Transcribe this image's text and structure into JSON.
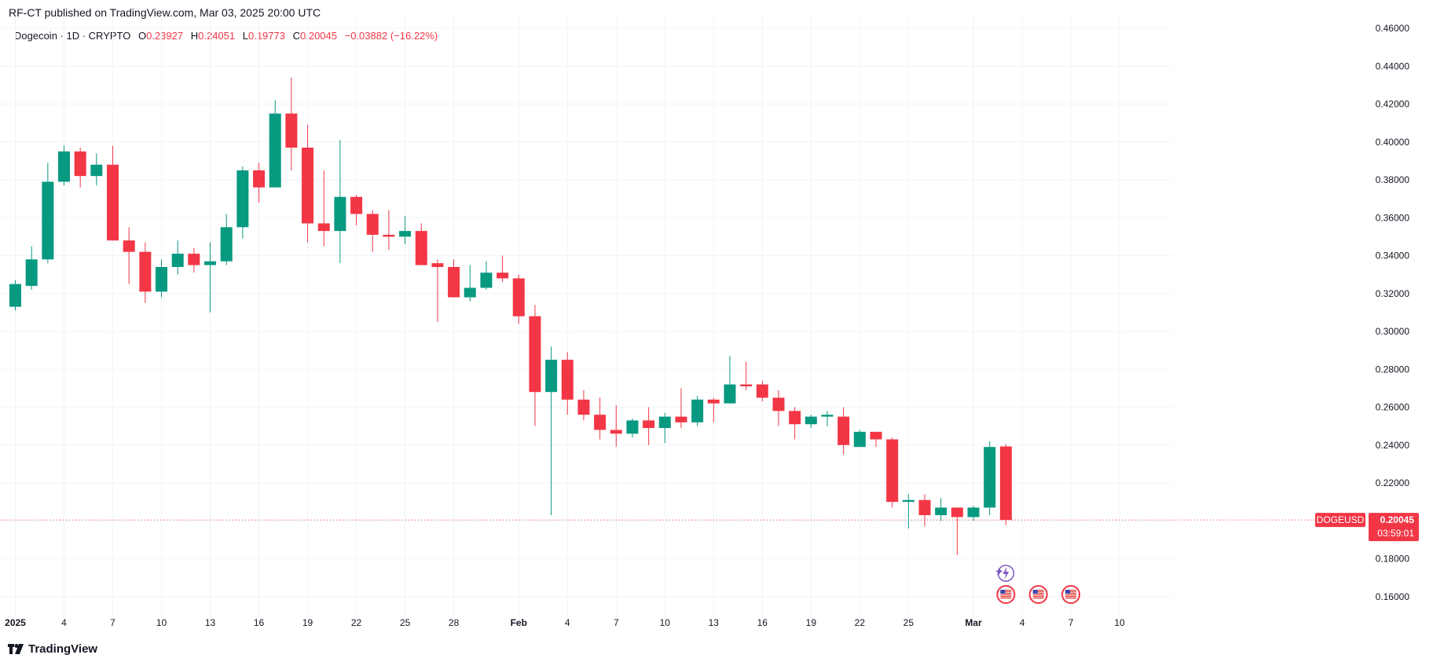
{
  "publish_info": "RF-CT published on TradingView.com, Mar 03, 2025 20:00 UTC",
  "legend": {
    "symbol": "Dogecoin · 1D · CRYPTO",
    "open_label": "O",
    "open_value": "0.23927",
    "high_label": "H",
    "high_value": "0.24051",
    "low_label": "L",
    "low_value": "0.19773",
    "close_label": "C",
    "close_value": "0.20045",
    "change": "−0.03882 (−16.22%)"
  },
  "price_tag": {
    "symbol_label": "DOGEUSD",
    "price": "0.20045",
    "countdown": "03:59:01"
  },
  "footer": {
    "brand": "TradingView"
  },
  "colors": {
    "up": "#089981",
    "down": "#f23645",
    "grid": "#f0f3fa",
    "axis_text": "#131722"
  },
  "events": {
    "spark_icon": "lightning-event-icon",
    "flag_icon": "us-flag-event-icon",
    "spark_day": "Mar 03",
    "flag_days": [
      "Mar 03",
      "Mar 05",
      "Mar 07"
    ]
  },
  "chart_data": {
    "type": "candlestick",
    "title": "Dogecoin · 1D · CRYPTO",
    "xlabel": "",
    "ylabel": "",
    "ylim": [
      0.15,
      0.465
    ],
    "y_ticks": [
      "0.46000",
      "0.44000",
      "0.42000",
      "0.40000",
      "0.38000",
      "0.36000",
      "0.34000",
      "0.32000",
      "0.30000",
      "0.28000",
      "0.26000",
      "0.24000",
      "0.22000",
      "0.20000",
      "0.18000",
      "0.16000"
    ],
    "x_ticks": [
      {
        "label": "2025",
        "index": 0
      },
      {
        "label": "4",
        "index": 3
      },
      {
        "label": "7",
        "index": 6
      },
      {
        "label": "10",
        "index": 9
      },
      {
        "label": "13",
        "index": 12
      },
      {
        "label": "16",
        "index": 15
      },
      {
        "label": "19",
        "index": 18
      },
      {
        "label": "22",
        "index": 21
      },
      {
        "label": "25",
        "index": 24
      },
      {
        "label": "28",
        "index": 27
      },
      {
        "label": "Feb",
        "index": 31
      },
      {
        "label": "4",
        "index": 34
      },
      {
        "label": "7",
        "index": 37
      },
      {
        "label": "10",
        "index": 40
      },
      {
        "label": "13",
        "index": 43
      },
      {
        "label": "16",
        "index": 46
      },
      {
        "label": "19",
        "index": 49
      },
      {
        "label": "22",
        "index": 52
      },
      {
        "label": "25",
        "index": 55
      },
      {
        "label": "Mar",
        "index": 59
      },
      {
        "label": "4",
        "index": 62
      },
      {
        "label": "7",
        "index": 65
      },
      {
        "label": "10",
        "index": 68
      }
    ],
    "grid": true,
    "last_price": 0.20045,
    "candles": [
      {
        "date": "2025-01-01",
        "open": 0.313,
        "high": 0.327,
        "low": 0.311,
        "close": 0.325
      },
      {
        "date": "2025-01-02",
        "open": 0.324,
        "high": 0.345,
        "low": 0.322,
        "close": 0.338
      },
      {
        "date": "2025-01-03",
        "open": 0.338,
        "high": 0.389,
        "low": 0.336,
        "close": 0.379
      },
      {
        "date": "2025-01-04",
        "open": 0.379,
        "high": 0.398,
        "low": 0.377,
        "close": 0.395
      },
      {
        "date": "2025-01-05",
        "open": 0.395,
        "high": 0.397,
        "low": 0.376,
        "close": 0.382
      },
      {
        "date": "2025-01-06",
        "open": 0.382,
        "high": 0.394,
        "low": 0.377,
        "close": 0.388
      },
      {
        "date": "2025-01-07",
        "open": 0.388,
        "high": 0.398,
        "low": 0.348,
        "close": 0.348
      },
      {
        "date": "2025-01-08",
        "open": 0.348,
        "high": 0.355,
        "low": 0.325,
        "close": 0.342
      },
      {
        "date": "2025-01-09",
        "open": 0.342,
        "high": 0.347,
        "low": 0.315,
        "close": 0.321
      },
      {
        "date": "2025-01-10",
        "open": 0.321,
        "high": 0.338,
        "low": 0.318,
        "close": 0.334
      },
      {
        "date": "2025-01-11",
        "open": 0.334,
        "high": 0.348,
        "low": 0.33,
        "close": 0.341
      },
      {
        "date": "2025-01-12",
        "open": 0.341,
        "high": 0.344,
        "low": 0.331,
        "close": 0.335
      },
      {
        "date": "2025-01-13",
        "open": 0.335,
        "high": 0.347,
        "low": 0.31,
        "close": 0.337
      },
      {
        "date": "2025-01-14",
        "open": 0.337,
        "high": 0.362,
        "low": 0.335,
        "close": 0.355
      },
      {
        "date": "2025-01-15",
        "open": 0.355,
        "high": 0.387,
        "low": 0.349,
        "close": 0.385
      },
      {
        "date": "2025-01-16",
        "open": 0.385,
        "high": 0.389,
        "low": 0.368,
        "close": 0.376
      },
      {
        "date": "2025-01-17",
        "open": 0.376,
        "high": 0.422,
        "low": 0.376,
        "close": 0.415
      },
      {
        "date": "2025-01-18",
        "open": 0.415,
        "high": 0.434,
        "low": 0.385,
        "close": 0.397
      },
      {
        "date": "2025-01-19",
        "open": 0.397,
        "high": 0.409,
        "low": 0.347,
        "close": 0.357
      },
      {
        "date": "2025-01-20",
        "open": 0.357,
        "high": 0.385,
        "low": 0.345,
        "close": 0.353
      },
      {
        "date": "2025-01-21",
        "open": 0.353,
        "high": 0.401,
        "low": 0.336,
        "close": 0.371
      },
      {
        "date": "2025-01-22",
        "open": 0.371,
        "high": 0.372,
        "low": 0.356,
        "close": 0.362
      },
      {
        "date": "2025-01-23",
        "open": 0.362,
        "high": 0.364,
        "low": 0.342,
        "close": 0.351
      },
      {
        "date": "2025-01-24",
        "open": 0.351,
        "high": 0.364,
        "low": 0.343,
        "close": 0.35
      },
      {
        "date": "2025-01-25",
        "open": 0.35,
        "high": 0.361,
        "low": 0.346,
        "close": 0.353
      },
      {
        "date": "2025-01-26",
        "open": 0.353,
        "high": 0.357,
        "low": 0.335,
        "close": 0.335
      },
      {
        "date": "2025-01-27",
        "open": 0.336,
        "high": 0.338,
        "low": 0.305,
        "close": 0.334
      },
      {
        "date": "2025-01-28",
        "open": 0.334,
        "high": 0.338,
        "low": 0.318,
        "close": 0.318
      },
      {
        "date": "2025-01-29",
        "open": 0.318,
        "high": 0.335,
        "low": 0.316,
        "close": 0.323
      },
      {
        "date": "2025-01-30",
        "open": 0.323,
        "high": 0.337,
        "low": 0.322,
        "close": 0.331
      },
      {
        "date": "2025-01-31",
        "open": 0.331,
        "high": 0.34,
        "low": 0.326,
        "close": 0.328
      },
      {
        "date": "2025-02-01",
        "open": 0.328,
        "high": 0.33,
        "low": 0.304,
        "close": 0.308
      },
      {
        "date": "2025-02-02",
        "open": 0.308,
        "high": 0.314,
        "low": 0.25,
        "close": 0.268
      },
      {
        "date": "2025-02-03",
        "open": 0.268,
        "high": 0.292,
        "low": 0.203,
        "close": 0.285
      },
      {
        "date": "2025-02-04",
        "open": 0.285,
        "high": 0.289,
        "low": 0.256,
        "close": 0.264
      },
      {
        "date": "2025-02-05",
        "open": 0.264,
        "high": 0.269,
        "low": 0.253,
        "close": 0.256
      },
      {
        "date": "2025-02-06",
        "open": 0.256,
        "high": 0.265,
        "low": 0.243,
        "close": 0.248
      },
      {
        "date": "2025-02-07",
        "open": 0.248,
        "high": 0.261,
        "low": 0.239,
        "close": 0.246
      },
      {
        "date": "2025-02-08",
        "open": 0.246,
        "high": 0.254,
        "low": 0.244,
        "close": 0.253
      },
      {
        "date": "2025-02-09",
        "open": 0.253,
        "high": 0.26,
        "low": 0.24,
        "close": 0.249
      },
      {
        "date": "2025-02-10",
        "open": 0.249,
        "high": 0.257,
        "low": 0.241,
        "close": 0.255
      },
      {
        "date": "2025-02-11",
        "open": 0.255,
        "high": 0.27,
        "low": 0.249,
        "close": 0.252
      },
      {
        "date": "2025-02-12",
        "open": 0.252,
        "high": 0.266,
        "low": 0.25,
        "close": 0.264
      },
      {
        "date": "2025-02-13",
        "open": 0.264,
        "high": 0.265,
        "low": 0.252,
        "close": 0.262
      },
      {
        "date": "2025-02-14",
        "open": 0.262,
        "high": 0.287,
        "low": 0.262,
        "close": 0.272
      },
      {
        "date": "2025-02-15",
        "open": 0.272,
        "high": 0.284,
        "low": 0.269,
        "close": 0.271
      },
      {
        "date": "2025-02-16",
        "open": 0.272,
        "high": 0.274,
        "low": 0.263,
        "close": 0.265
      },
      {
        "date": "2025-02-17",
        "open": 0.265,
        "high": 0.269,
        "low": 0.25,
        "close": 0.258
      },
      {
        "date": "2025-02-18",
        "open": 0.258,
        "high": 0.26,
        "low": 0.243,
        "close": 0.251
      },
      {
        "date": "2025-02-19",
        "open": 0.251,
        "high": 0.256,
        "low": 0.249,
        "close": 0.255
      },
      {
        "date": "2025-02-20",
        "open": 0.255,
        "high": 0.258,
        "low": 0.25,
        "close": 0.256
      },
      {
        "date": "2025-02-21",
        "open": 0.255,
        "high": 0.26,
        "low": 0.235,
        "close": 0.24
      },
      {
        "date": "2025-02-22",
        "open": 0.239,
        "high": 0.248,
        "low": 0.239,
        "close": 0.247
      },
      {
        "date": "2025-02-23",
        "open": 0.247,
        "high": 0.247,
        "low": 0.239,
        "close": 0.243
      },
      {
        "date": "2025-02-24",
        "open": 0.243,
        "high": 0.244,
        "low": 0.207,
        "close": 0.21
      },
      {
        "date": "2025-02-25",
        "open": 0.21,
        "high": 0.214,
        "low": 0.196,
        "close": 0.211
      },
      {
        "date": "2025-02-26",
        "open": 0.211,
        "high": 0.214,
        "low": 0.197,
        "close": 0.203
      },
      {
        "date": "2025-02-27",
        "open": 0.203,
        "high": 0.212,
        "low": 0.2,
        "close": 0.207
      },
      {
        "date": "2025-02-28",
        "open": 0.207,
        "high": 0.207,
        "low": 0.182,
        "close": 0.202
      },
      {
        "date": "2025-03-01",
        "open": 0.202,
        "high": 0.208,
        "low": 0.2,
        "close": 0.207
      },
      {
        "date": "2025-03-02",
        "open": 0.207,
        "high": 0.242,
        "low": 0.203,
        "close": 0.239
      },
      {
        "date": "2025-03-03",
        "open": 0.23927,
        "high": 0.24051,
        "low": 0.19773,
        "close": 0.20045
      }
    ]
  }
}
